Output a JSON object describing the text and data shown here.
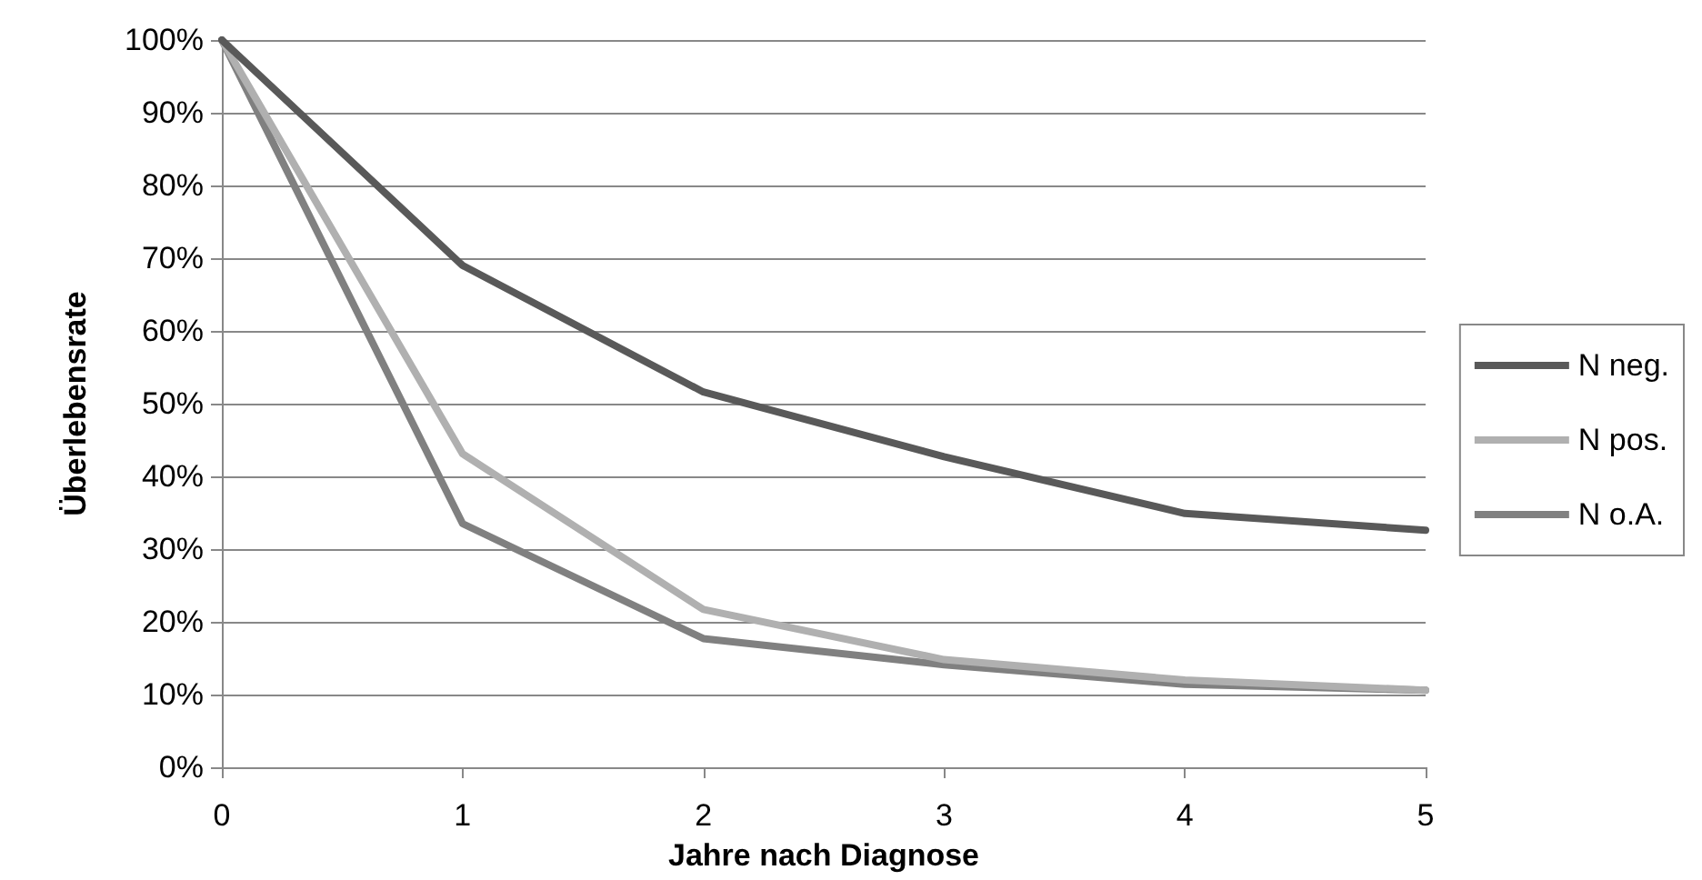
{
  "chart_data": {
    "type": "line",
    "xlabel": "Jahre nach Diagnose",
    "ylabel": "Überlebensrate",
    "x": [
      0,
      1,
      2,
      3,
      4,
      5
    ],
    "xlim": [
      0,
      5
    ],
    "xticks": [
      0,
      1,
      2,
      3,
      4,
      5
    ],
    "ylim": [
      0,
      100
    ],
    "yticks": [
      {
        "value": 0,
        "label": "0%"
      },
      {
        "value": 10,
        "label": "10%"
      },
      {
        "value": 20,
        "label": "20%"
      },
      {
        "value": 30,
        "label": "30%"
      },
      {
        "value": 40,
        "label": "40%"
      },
      {
        "value": 50,
        "label": "50%"
      },
      {
        "value": 60,
        "label": "60%"
      },
      {
        "value": 70,
        "label": "70%"
      },
      {
        "value": 80,
        "label": "80%"
      },
      {
        "value": 90,
        "label": "90%"
      },
      {
        "value": 100,
        "label": "100%"
      }
    ],
    "grid": "y",
    "legend": "right",
    "marker": "none",
    "line_style": "solid",
    "series": [
      {
        "name": "N neg.",
        "color": "#595959",
        "values": [
          100,
          69,
          51.6,
          42.7,
          34.9,
          32.6
        ]
      },
      {
        "name": "N pos.",
        "color": "#b0b0b0",
        "values": [
          100,
          43.1,
          21.7,
          14.8,
          12,
          10.6
        ]
      },
      {
        "name": "N o.A.",
        "color": "#808080",
        "values": [
          100,
          33.5,
          17.7,
          14.1,
          11.4,
          10.6
        ]
      }
    ]
  }
}
